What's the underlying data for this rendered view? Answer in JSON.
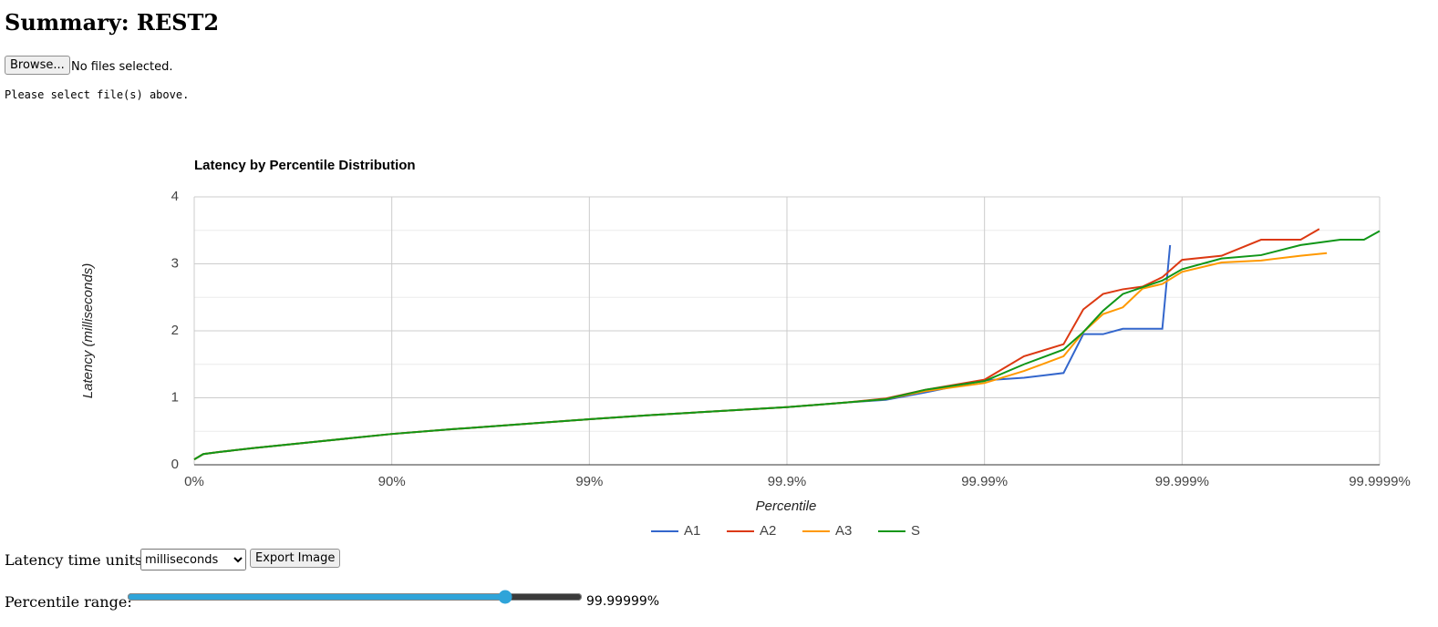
{
  "page": {
    "heading": "Summary: REST2",
    "browse_button": "Browse...",
    "file_status": "No files selected.",
    "hint": "Please select file(s) above.",
    "units_label": "Latency time units:",
    "units_option": "milliseconds",
    "export_button": "Export Image",
    "range_label": "Percentile range:",
    "range_value": "99.99999%"
  },
  "chart_data": {
    "type": "line",
    "title": "Latency by Percentile Distribution",
    "x_label": "Percentile",
    "y_label": "Latency (milliseconds)",
    "xscale": "inverse-log",
    "grid": true,
    "legend": "bottom",
    "xlim": [
      0,
      99.9999
    ],
    "xticks": [
      {
        "value": 0,
        "label": "0%"
      },
      {
        "value": 90,
        "label": "90%"
      },
      {
        "value": 99,
        "label": "99%"
      },
      {
        "value": 99.9,
        "label": "99.9%"
      },
      {
        "value": 99.99,
        "label": "99.99%"
      },
      {
        "value": 99.999,
        "label": "99.999%"
      },
      {
        "value": 99.9999,
        "label": "99.9999%"
      }
    ],
    "ylim": [
      0,
      4
    ],
    "yticks": [
      0,
      1,
      2,
      3,
      4
    ],
    "yminorgrid": [
      0.5,
      1.5,
      2.5,
      3.5
    ],
    "series": [
      {
        "name": "A1",
        "color": "#3366cc",
        "x": [
          0,
          10,
          25,
          50,
          75,
          90,
          95,
          99,
          99.5,
          99.9,
          99.95,
          99.9684,
          99.98005,
          99.99,
          99.99369,
          99.99602,
          99.996838,
          99.997488,
          99.998005,
          99.998741,
          99.99885
        ],
        "values": [
          0.08,
          0.16,
          0.19,
          0.25,
          0.34,
          0.46,
          0.53,
          0.68,
          0.74,
          0.86,
          0.93,
          0.97,
          1.08,
          1.26,
          1.3,
          1.37,
          1.95,
          1.95,
          2.03,
          2.03,
          3.28
        ]
      },
      {
        "name": "A2",
        "color": "#dc3912",
        "x": [
          0,
          10,
          25,
          50,
          75,
          90,
          95,
          99,
          99.5,
          99.9,
          99.95,
          99.9684,
          99.98005,
          99.99,
          99.99369,
          99.99602,
          99.996838,
          99.997488,
          99.998005,
          99.998415,
          99.998741,
          99.999,
          99.999369,
          99.999602,
          99.999749,
          99.999798
        ],
        "values": [
          0.08,
          0.16,
          0.19,
          0.25,
          0.34,
          0.46,
          0.53,
          0.68,
          0.74,
          0.86,
          0.93,
          0.99,
          1.12,
          1.27,
          1.62,
          1.8,
          2.32,
          2.55,
          2.62,
          2.66,
          2.8,
          3.06,
          3.12,
          3.36,
          3.36,
          3.52
        ]
      },
      {
        "name": "A3",
        "color": "#ff9900",
        "x": [
          0,
          10,
          25,
          50,
          75,
          90,
          95,
          99,
          99.5,
          99.9,
          99.95,
          99.9684,
          99.98005,
          99.99,
          99.99369,
          99.99602,
          99.996838,
          99.997488,
          99.998005,
          99.998415,
          99.998741,
          99.999,
          99.999369,
          99.999602,
          99.999749,
          99.999815
        ],
        "values": [
          0.08,
          0.16,
          0.19,
          0.25,
          0.34,
          0.46,
          0.53,
          0.68,
          0.74,
          0.86,
          0.93,
          0.98,
          1.1,
          1.22,
          1.4,
          1.62,
          1.98,
          2.25,
          2.35,
          2.63,
          2.7,
          2.88,
          3.02,
          3.05,
          3.12,
          3.16
        ]
      },
      {
        "name": "S",
        "color": "#109618",
        "x": [
          0,
          10,
          25,
          50,
          75,
          90,
          95,
          99,
          99.5,
          99.9,
          99.95,
          99.9684,
          99.98005,
          99.99,
          99.99369,
          99.99602,
          99.996838,
          99.997488,
          99.998005,
          99.998415,
          99.998741,
          99.999,
          99.999369,
          99.999602,
          99.999749,
          99.999842,
          99.99988,
          99.9999
        ],
        "values": [
          0.08,
          0.16,
          0.19,
          0.25,
          0.34,
          0.46,
          0.53,
          0.68,
          0.74,
          0.86,
          0.93,
          0.98,
          1.12,
          1.25,
          1.5,
          1.72,
          1.98,
          2.3,
          2.55,
          2.65,
          2.75,
          2.92,
          3.08,
          3.13,
          3.28,
          3.36,
          3.36,
          3.49
        ]
      }
    ]
  }
}
